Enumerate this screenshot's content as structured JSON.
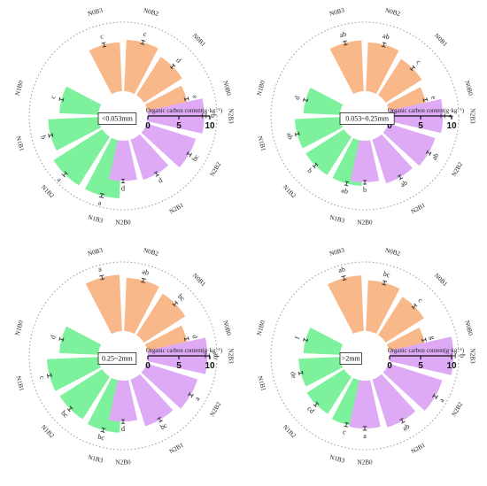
{
  "colors": {
    "N0": "#f9b889",
    "N1": "#7ef19c",
    "N2": "#deaaf6",
    "grid": "#9a9a9a",
    "axis": "#111111",
    "error": "#333333"
  },
  "chart_data": [
    {
      "type": "radial-bar",
      "panel_label": "<0.053mm",
      "axis_title": "Organic carbon content(g·kg⁻¹)",
      "ticks": [
        "0",
        "5",
        "10"
      ],
      "ylim": [
        0,
        10
      ],
      "categories": [
        "N0B0",
        "N0B1",
        "N0B2",
        "N0B3",
        "N1B0",
        "N1B1",
        "N1B2",
        "N1B3",
        "N2B0",
        "N2B1",
        "N2B2",
        "N2B3"
      ],
      "values": [
        6.6,
        7.3,
        8.3,
        7.9,
        6.3,
        8.1,
        9.3,
        9.3,
        6.5,
        6.8,
        8.3,
        9.1
      ],
      "errors": [
        0.3,
        0.3,
        0.3,
        0.3,
        0.3,
        0.3,
        0.3,
        0.3,
        0.3,
        0.3,
        0.3,
        0.3
      ],
      "letters": [
        "e",
        "d",
        "c",
        "c",
        "c",
        "b",
        "a",
        "a",
        "d",
        "d",
        "bc",
        "b"
      ]
    },
    {
      "type": "radial-bar",
      "panel_label": "0.053~0.25mm",
      "axis_title": "Organic carbon content(g·kg⁻¹)",
      "ticks": [
        "0",
        "5",
        "10"
      ],
      "ylim": [
        0,
        10
      ],
      "categories": [
        "N0B0",
        "N0B1",
        "N0B2",
        "N0B3",
        "N1B0",
        "N1B1",
        "N1B2",
        "N1B3",
        "N2B0",
        "N2B1",
        "N2B2",
        "N2B3"
      ],
      "values": [
        6.1,
        6.9,
        7.9,
        8.2,
        5.9,
        7.3,
        7.3,
        7.3,
        6.7,
        7.4,
        7.9,
        8.6
      ],
      "errors": [
        0.3,
        0.3,
        0.3,
        0.3,
        0.3,
        0.3,
        0.3,
        0.3,
        0.3,
        0.3,
        0.3,
        0.3
      ],
      "letters": [
        "e",
        "c",
        "ab",
        "ab",
        "d",
        "ab",
        "b",
        "ab",
        "b",
        "ab",
        "ab",
        "a"
      ]
    },
    {
      "type": "radial-bar",
      "panel_label": "0.25~2mm",
      "axis_title": "Organic carbon content(g·kg⁻¹)",
      "ticks": [
        "0",
        "5",
        "10"
      ],
      "ylim": [
        0,
        10
      ],
      "categories": [
        "N0B0",
        "N0B1",
        "N0B2",
        "N0B3",
        "N1B0",
        "N1B1",
        "N1B2",
        "N1B3",
        "N2B0",
        "N2B1",
        "N2B2",
        "N2B3"
      ],
      "values": [
        6.6,
        7.9,
        8.6,
        9.1,
        6.3,
        8.3,
        8.1,
        8.4,
        6.6,
        7.9,
        8.6,
        9.6
      ],
      "errors": [
        0.3,
        0.3,
        0.3,
        0.3,
        0.3,
        0.3,
        0.3,
        0.3,
        0.3,
        0.3,
        0.3,
        0.3
      ],
      "letters": [
        "d",
        "bc",
        "ab",
        "a",
        "d",
        "c",
        "bc",
        "bc",
        "d",
        "bc",
        "a",
        "ab"
      ]
    },
    {
      "type": "radial-bar",
      "panel_label": ">2mm",
      "axis_title": "Organic carbon content(g·kg⁻¹)",
      "ticks": [
        "0",
        "5",
        "10"
      ],
      "ylim": [
        0,
        10
      ],
      "categories": [
        "N0B0",
        "N0B1",
        "N0B2",
        "N0B3",
        "N1B0",
        "N1B1",
        "N1B2",
        "N1B3",
        "N2B0",
        "N2B1",
        "N2B2",
        "N2B3"
      ],
      "values": [
        5.9,
        7.3,
        8.2,
        9.0,
        5.9,
        6.7,
        7.1,
        7.5,
        7.7,
        8.1,
        9.1,
        10.3
      ],
      "errors": [
        0.3,
        0.3,
        0.3,
        0.3,
        0.3,
        0.3,
        0.3,
        0.3,
        0.3,
        0.3,
        0.3,
        0.3
      ],
      "letters": [
        "g",
        "c",
        "bc",
        "ab",
        "f",
        "de",
        "cd",
        "c",
        "a",
        "ab",
        "a",
        "b"
      ]
    }
  ]
}
